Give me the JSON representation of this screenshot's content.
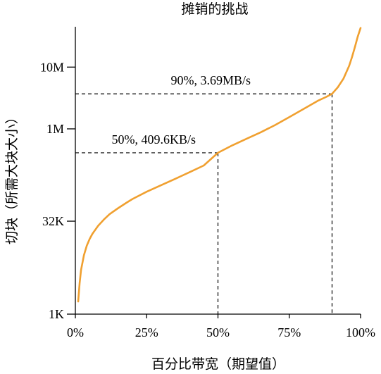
{
  "chart_data": {
    "type": "line",
    "title": "摊销的挑战",
    "xlabel": "百分比带宽（期望值）",
    "ylabel": "切块（所需大块大小）",
    "x_ticks": [
      {
        "value": 0,
        "label": "0%"
      },
      {
        "value": 25,
        "label": "25%"
      },
      {
        "value": 50,
        "label": "50%"
      },
      {
        "value": 75,
        "label": "75%"
      },
      {
        "value": 100,
        "label": "100%"
      }
    ],
    "y_scale": "log",
    "y_ticks": [
      {
        "value": 1000,
        "label": "1K"
      },
      {
        "value": 32000,
        "label": "32K"
      },
      {
        "value": 1000000,
        "label": "1M"
      },
      {
        "value": 10000000,
        "label": "10M"
      }
    ],
    "xlim": [
      0,
      100
    ],
    "ylim": [
      1000,
      45000000
    ],
    "grid": false,
    "series": [
      {
        "color": "#f0a030",
        "x": [
          1,
          1.5,
          2,
          3,
          4,
          5,
          6,
          8,
          10,
          12,
          15,
          18,
          20,
          25,
          30,
          35,
          40,
          45,
          50,
          55,
          60,
          65,
          70,
          75,
          80,
          85,
          88,
          90,
          92,
          94,
          96,
          97,
          98,
          99,
          100
        ],
        "y": [
          1600,
          3200,
          5200,
          9000,
          12800,
          16500,
          20000,
          27000,
          34000,
          41500,
          52000,
          64000,
          73000,
          96000,
          122000,
          155000,
          198000,
          255000,
          409600,
          540000,
          690000,
          880000,
          1150000,
          1550000,
          2100000,
          2850000,
          3300000,
          3690000,
          4700000,
          6500000,
          10500000,
          14500000,
          21000000,
          31000000,
          43000000
        ]
      }
    ],
    "annotations": [
      {
        "x": 50,
        "y": 409600,
        "label": "50%, 409.6KB/s"
      },
      {
        "x": 90,
        "y": 3690000,
        "label": "90%, 3.69MB/s"
      }
    ]
  }
}
